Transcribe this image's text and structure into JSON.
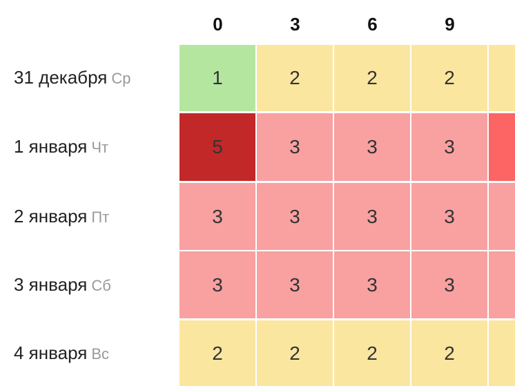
{
  "chart_data": {
    "type": "heatmap",
    "columns": [
      "0",
      "3",
      "6",
      "9",
      ""
    ],
    "rows": [
      {
        "date": "31 декабря",
        "dow": "Ср",
        "values": [
          1,
          2,
          2,
          2,
          null
        ],
        "colors": [
          "#b4e6a0",
          "#fbe6a0",
          "#fbe6a0",
          "#fbe6a0",
          "#fbe6a0"
        ]
      },
      {
        "date": "1 января",
        "dow": "Чт",
        "values": [
          5,
          3,
          3,
          3,
          null
        ],
        "colors": [
          "#c22828",
          "#f9a0a0",
          "#f9a0a0",
          "#f9a0a0",
          "#fd6464"
        ]
      },
      {
        "date": "2 января",
        "dow": "Пт",
        "values": [
          3,
          3,
          3,
          3,
          null
        ],
        "colors": [
          "#f9a0a0",
          "#f9a0a0",
          "#f9a0a0",
          "#f9a0a0",
          "#f9a0a0"
        ]
      },
      {
        "date": "3 января",
        "dow": "Сб",
        "values": [
          3,
          3,
          3,
          3,
          null
        ],
        "colors": [
          "#f9a0a0",
          "#f9a0a0",
          "#f9a0a0",
          "#f9a0a0",
          "#f9a0a0"
        ]
      },
      {
        "date": "4 января",
        "dow": "Вс",
        "values": [
          2,
          2,
          2,
          2,
          null
        ],
        "colors": [
          "#fbe6a0",
          "#fbe6a0",
          "#fbe6a0",
          "#fbe6a0",
          "#fbe6a0"
        ]
      }
    ]
  }
}
